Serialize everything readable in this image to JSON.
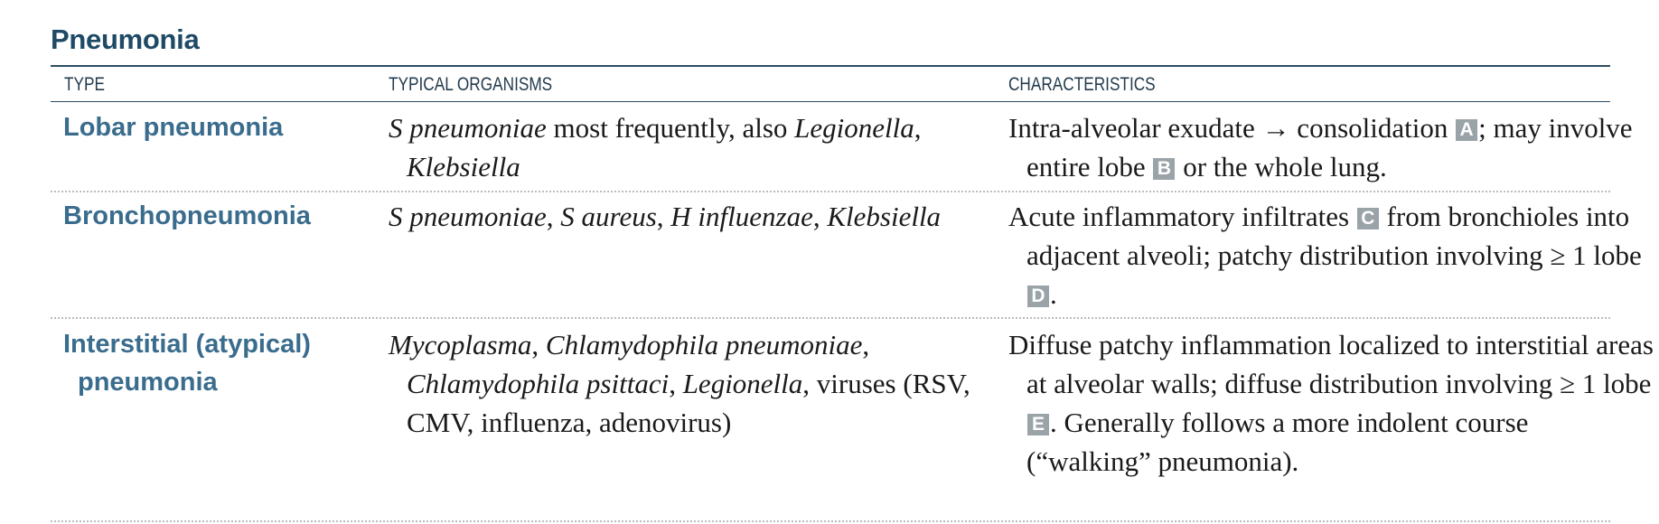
{
  "title": "Pneumonia",
  "headers": {
    "type": "TYPE",
    "organisms": "TYPICAL ORGANISMS",
    "characteristics": "CHARACTERISTICS"
  },
  "rows": [
    {
      "type": "Lobar pneumonia",
      "organisms": [
        {
          "text": "S pneumoniae",
          "italic": true
        },
        {
          "text": " most frequently, also "
        },
        {
          "text": "Legionella",
          "italic": true
        },
        {
          "text": ", "
        },
        {
          "text": "Klebsiella",
          "italic": true
        }
      ],
      "characteristics": [
        {
          "text": "Intra-alveolar exudate → consolidation "
        },
        {
          "tag": "A"
        },
        {
          "text": "; may involve entire lobe "
        },
        {
          "tag": "B"
        },
        {
          "text": " or the whole lung."
        }
      ]
    },
    {
      "type": "Bronchopneumonia",
      "organisms": [
        {
          "text": "S pneumoniae",
          "italic": true
        },
        {
          "text": ", "
        },
        {
          "text": "S aureus",
          "italic": true
        },
        {
          "text": ", "
        },
        {
          "text": "H influenzae",
          "italic": true
        },
        {
          "text": ", "
        },
        {
          "text": "Klebsiella",
          "italic": true
        }
      ],
      "characteristics": [
        {
          "text": "Acute inflammatory infiltrates "
        },
        {
          "tag": "C"
        },
        {
          "text": " from bronchioles into adjacent alveoli; patchy distribution involving ≥ 1 lobe "
        },
        {
          "tag": "D"
        },
        {
          "text": "."
        }
      ]
    },
    {
      "type": "Interstitial (atypical) pneumonia",
      "organisms": [
        {
          "text": "Mycoplasma",
          "italic": true
        },
        {
          "text": ", "
        },
        {
          "text": "Chlamydophila pneumoniae",
          "italic": true
        },
        {
          "text": ", "
        },
        {
          "text": "Chlamydophila psittaci",
          "italic": true
        },
        {
          "text": ", "
        },
        {
          "text": "Legionella",
          "italic": true
        },
        {
          "text": ", viruses (RSV, CMV, influenza, adenovirus)"
        }
      ],
      "characteristics": [
        {
          "text": "Diffuse patchy inflammation localized to interstitial areas at alveolar walls; diffuse distribution involving ≥ 1 lobe "
        },
        {
          "tag": "E"
        },
        {
          "text": ". Generally follows a more indolent course (“walking” pneumonia)."
        }
      ]
    }
  ]
}
